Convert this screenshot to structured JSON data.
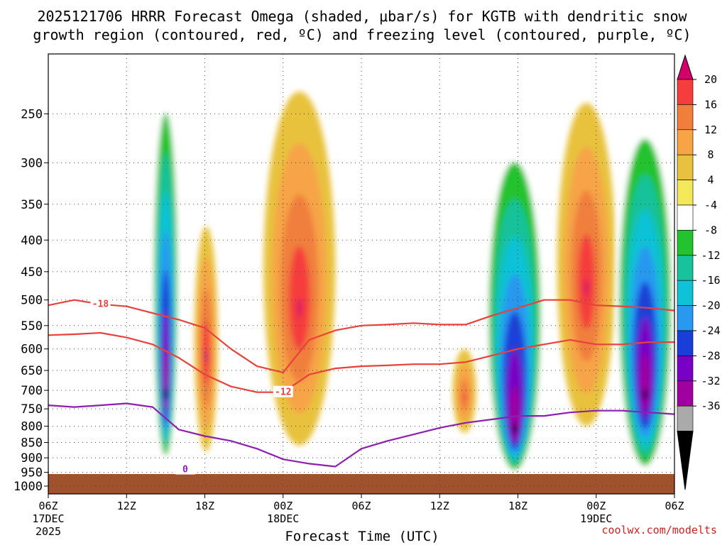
{
  "chart_data": {
    "type": "heatmap",
    "title_lines": [
      "2025121706 HRRR Forecast Omega (shaded, μbar/s) for KGTB with dendritic snow",
      "growth region (contoured, red, ºC) and freezing level (contoured, purple, ºC)"
    ],
    "xlabel": "Forecast Time (UTC)",
    "ylabel": "",
    "x_range_hours": [
      0,
      48
    ],
    "x_ticks": [
      {
        "hour": 0,
        "label": "06Z",
        "sub": [
          "17DEC",
          "2025"
        ]
      },
      {
        "hour": 6,
        "label": "12Z",
        "sub": []
      },
      {
        "hour": 12,
        "label": "18Z",
        "sub": []
      },
      {
        "hour": 18,
        "label": "00Z",
        "sub": [
          "18DEC"
        ]
      },
      {
        "hour": 24,
        "label": "06Z",
        "sub": []
      },
      {
        "hour": 30,
        "label": "12Z",
        "sub": []
      },
      {
        "hour": 36,
        "label": "18Z",
        "sub": []
      },
      {
        "hour": 42,
        "label": "00Z",
        "sub": [
          "19DEC"
        ]
      },
      {
        "hour": 48,
        "label": "06Z",
        "sub": []
      }
    ],
    "y_scale": "log-pressure",
    "y_range_hPa": [
      1000,
      200
    ],
    "y_ticks": [
      250,
      300,
      350,
      400,
      450,
      500,
      550,
      600,
      650,
      700,
      750,
      800,
      850,
      900,
      950,
      1000
    ],
    "colorbar": {
      "labels": [
        "20",
        "16",
        "12",
        "8",
        "4",
        "-4",
        "-8",
        "-12",
        "-16",
        "-20",
        "-24",
        "-28",
        "-32",
        "-36"
      ],
      "bins": [
        {
          "color": "#d4006a"
        },
        {
          "color": "#f53d3d"
        },
        {
          "color": "#f07f3c"
        },
        {
          "color": "#f6a446"
        },
        {
          "color": "#e8c23e"
        },
        {
          "color": "#f2e85a"
        },
        {
          "color": "#ffffff"
        },
        {
          "color": "#22c32e"
        },
        {
          "color": "#18c29a"
        },
        {
          "color": "#10c2d6"
        },
        {
          "color": "#2899ef"
        },
        {
          "color": "#1a3fd8"
        },
        {
          "color": "#7a00c6"
        },
        {
          "color": "#a0009f"
        },
        {
          "color": "#aaaaaa"
        },
        {
          "color": "#000000"
        }
      ]
    },
    "omega_features": [
      {
        "t0": 8.0,
        "t1": 10.0,
        "p_top": 215,
        "p_bot": 920,
        "peak": -36,
        "peak_p": 720
      },
      {
        "t0": 11.2,
        "t1": 13.0,
        "p_top": 380,
        "p_bot": 880,
        "peak": 20,
        "peak_p": 620
      },
      {
        "t0": 16.5,
        "t1": 22.0,
        "p_top": 230,
        "p_bot": 860,
        "peak": 20,
        "peak_p": 520
      },
      {
        "t0": 31.0,
        "t1": 32.8,
        "p_top": 600,
        "p_bot": 820,
        "peak": 16,
        "peak_p": 720
      },
      {
        "t0": 33.5,
        "t1": 38.0,
        "p_top": 260,
        "p_bot": 960,
        "peak": -36,
        "peak_p": 820
      },
      {
        "t0": 39.0,
        "t1": 43.5,
        "p_top": 240,
        "p_bot": 800,
        "peak": 20,
        "peak_p": 480
      },
      {
        "t0": 43.5,
        "t1": 48.0,
        "p_top": 240,
        "p_bot": 960,
        "peak": -36,
        "peak_p": 720
      }
    ],
    "series": [
      {
        "name": "-18 °C isotherm",
        "color": "#e8403c",
        "label": "-18",
        "label_hour": 4.0,
        "label_p": 508,
        "hours": [
          0,
          2,
          4,
          6,
          8,
          10,
          12,
          14,
          16,
          18,
          20,
          22,
          24,
          26,
          28,
          30,
          32,
          34,
          36,
          38,
          40,
          42,
          44,
          46,
          48
        ],
        "p_hPa": [
          510,
          500,
          508,
          512,
          525,
          538,
          555,
          600,
          640,
          655,
          580,
          560,
          550,
          548,
          545,
          548,
          548,
          530,
          515,
          500,
          500,
          510,
          512,
          515,
          520
        ]
      },
      {
        "name": "-12 °C isotherm",
        "color": "#e8403c",
        "label": "-12",
        "label_hour": 18.0,
        "label_p": 705,
        "hours": [
          0,
          2,
          4,
          6,
          8,
          10,
          12,
          14,
          16,
          18,
          20,
          22,
          24,
          26,
          28,
          30,
          32,
          34,
          36,
          38,
          40,
          42,
          44,
          46,
          48
        ],
        "p_hPa": [
          570,
          568,
          565,
          575,
          590,
          620,
          660,
          690,
          705,
          705,
          660,
          645,
          640,
          638,
          635,
          635,
          630,
          615,
          600,
          590,
          580,
          590,
          590,
          585,
          585
        ]
      },
      {
        "name": "0 °C freezing level",
        "color": "#8c1fb0",
        "label": "0",
        "label_hour": 10.5,
        "label_p": 940,
        "hours": [
          0,
          2,
          4,
          6,
          8,
          10,
          12,
          14,
          16,
          18,
          20,
          22,
          24,
          26,
          28,
          30,
          32,
          34,
          36,
          38,
          40,
          42,
          44,
          46,
          48
        ],
        "p_hPa": [
          740,
          745,
          740,
          735,
          745,
          810,
          830,
          845,
          870,
          905,
          920,
          930,
          870,
          845,
          825,
          805,
          790,
          780,
          770,
          770,
          760,
          755,
          755,
          760,
          765
        ]
      }
    ]
  },
  "credit": "coolwx.com/modelts"
}
